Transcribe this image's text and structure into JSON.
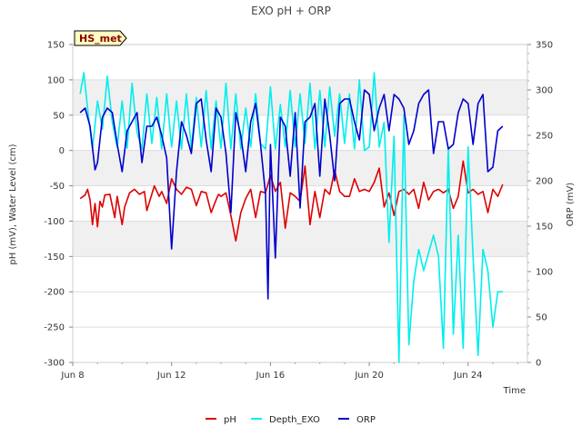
{
  "chart_data": {
    "type": "line",
    "title": "EXO pH + ORP",
    "badge": "HS_met",
    "xlabel": "Time",
    "ylabel_left": "pH (mV), Water Level (cm)",
    "ylabel_right": "ORP (mV)",
    "ylim_left": [
      -300,
      150
    ],
    "ylim_right": [
      0,
      350
    ],
    "xlim": [
      0,
      18.4
    ],
    "x_unit": "days since Jun 8",
    "x_ticks": [
      {
        "x": 0,
        "label": "Jun 8"
      },
      {
        "x": 4,
        "label": "Jun 12"
      },
      {
        "x": 8,
        "label": "Jun 16"
      },
      {
        "x": 12,
        "label": "Jun 20"
      },
      {
        "x": 16,
        "label": "Jun 24"
      }
    ],
    "y_ticks_left": [
      -300,
      -250,
      -200,
      -150,
      -100,
      -50,
      0,
      50,
      100,
      150
    ],
    "y_ticks_right": [
      0,
      50,
      100,
      150,
      200,
      250,
      300,
      350
    ],
    "bands_left": [
      [
        -150,
        -100
      ],
      [
        -50,
        0
      ],
      [
        50,
        100
      ]
    ],
    "grid": true,
    "legend_position": "bottom",
    "series": [
      {
        "name": "pH",
        "axis": "left",
        "color": "#dd0000",
        "x": [
          0.3,
          0.5,
          0.6,
          0.7,
          0.8,
          0.9,
          1.0,
          1.1,
          1.2,
          1.3,
          1.5,
          1.7,
          1.8,
          2.0,
          2.1,
          2.3,
          2.5,
          2.7,
          2.9,
          3.0,
          3.3,
          3.5,
          3.6,
          3.8,
          4.0,
          4.2,
          4.4,
          4.6,
          4.8,
          5.0,
          5.2,
          5.4,
          5.6,
          5.8,
          5.9,
          6.0,
          6.2,
          6.4,
          6.6,
          6.8,
          7.0,
          7.2,
          7.4,
          7.6,
          7.8,
          8.0,
          8.2,
          8.4,
          8.6,
          8.8,
          9.0,
          9.2,
          9.4,
          9.6,
          9.8,
          10.0,
          10.2,
          10.4,
          10.6,
          10.8,
          11.0,
          11.2,
          11.4,
          11.6,
          11.8,
          12.0,
          12.2,
          12.4,
          12.6,
          12.8,
          13.0,
          13.2,
          13.4,
          13.6,
          13.8,
          14.0,
          14.2,
          14.4,
          14.6,
          14.8,
          15.0,
          15.2,
          15.4,
          15.6,
          15.8,
          16.0,
          16.2,
          16.4,
          16.6,
          16.8,
          17.0,
          17.2,
          17.4
        ],
        "values": [
          -68,
          -63,
          -55,
          -70,
          -105,
          -75,
          -108,
          -72,
          -80,
          -63,
          -62,
          -95,
          -65,
          -105,
          -80,
          -60,
          -55,
          -62,
          -58,
          -85,
          -50,
          -65,
          -58,
          -75,
          -40,
          -55,
          -62,
          -52,
          -55,
          -78,
          -58,
          -60,
          -88,
          -70,
          -62,
          -65,
          -60,
          -92,
          -128,
          -88,
          -68,
          -55,
          -95,
          -58,
          -60,
          -35,
          -58,
          -45,
          -110,
          -60,
          -65,
          -72,
          -22,
          -105,
          -58,
          -95,
          -55,
          -62,
          -28,
          -58,
          -65,
          -65,
          -40,
          -58,
          -55,
          -58,
          -45,
          -25,
          -80,
          -60,
          -92,
          -58,
          -55,
          -62,
          -55,
          -82,
          -45,
          -70,
          -58,
          -55,
          -60,
          -55,
          -82,
          -65,
          -15,
          -60,
          -55,
          -62,
          -58,
          -88,
          -55,
          -65,
          -48
        ]
      },
      {
        "name": "Depth_EXO",
        "axis": "left",
        "color": "#00eeee",
        "x": [
          0.3,
          0.45,
          0.6,
          0.8,
          1.0,
          1.2,
          1.4,
          1.6,
          1.8,
          2.0,
          2.2,
          2.4,
          2.6,
          2.8,
          3.0,
          3.2,
          3.4,
          3.6,
          3.8,
          4.0,
          4.2,
          4.4,
          4.6,
          4.8,
          5.0,
          5.2,
          5.4,
          5.6,
          5.8,
          6.0,
          6.2,
          6.4,
          6.6,
          6.8,
          7.0,
          7.2,
          7.4,
          7.6,
          7.8,
          8.0,
          8.2,
          8.4,
          8.6,
          8.8,
          9.0,
          9.2,
          9.4,
          9.6,
          9.8,
          10.0,
          10.2,
          10.4,
          10.6,
          10.8,
          11.0,
          11.2,
          11.4,
          11.6,
          11.8,
          12.0,
          12.2,
          12.4,
          12.6,
          12.8,
          13.0,
          13.2,
          13.4,
          13.6,
          13.8,
          14.0,
          14.2,
          14.4,
          14.6,
          14.8,
          15.0,
          15.2,
          15.4,
          15.6,
          15.8,
          16.0,
          16.2,
          16.4,
          16.6,
          16.8,
          17.0,
          17.2,
          17.4
        ],
        "values": [
          80,
          110,
          60,
          2,
          70,
          30,
          105,
          40,
          5,
          70,
          3,
          95,
          25,
          2,
          80,
          10,
          75,
          2,
          80,
          5,
          70,
          2,
          80,
          3,
          75,
          5,
          85,
          2,
          70,
          3,
          95,
          2,
          80,
          2,
          60,
          5,
          80,
          10,
          2,
          90,
          2,
          65,
          5,
          85,
          5,
          80,
          10,
          95,
          2,
          85,
          5,
          90,
          20,
          80,
          10,
          80,
          2,
          100,
          0,
          5,
          110,
          5,
          40,
          -130,
          20,
          -300,
          50,
          -275,
          -185,
          -140,
          -170,
          -145,
          -120,
          -150,
          -280,
          5,
          -260,
          -120,
          -280,
          5,
          -150,
          -290,
          -140,
          -170,
          -250,
          -200,
          -200
        ]
      },
      {
        "name": "ORP",
        "axis": "right",
        "color": "#0000cc",
        "x": [
          0.3,
          0.5,
          0.7,
          0.9,
          1.0,
          1.2,
          1.4,
          1.6,
          1.8,
          2.0,
          2.2,
          2.4,
          2.6,
          2.8,
          3.0,
          3.2,
          3.4,
          3.6,
          3.8,
          4.0,
          4.2,
          4.4,
          4.6,
          4.8,
          5.0,
          5.2,
          5.4,
          5.6,
          5.8,
          6.0,
          6.2,
          6.4,
          6.6,
          6.8,
          7.0,
          7.2,
          7.4,
          7.6,
          7.8,
          7.9,
          8.0,
          8.2,
          8.4,
          8.6,
          8.8,
          9.0,
          9.2,
          9.4,
          9.6,
          9.8,
          10.0,
          10.2,
          10.4,
          10.6,
          10.8,
          11.0,
          11.2,
          11.4,
          11.6,
          11.8,
          12.0,
          12.2,
          12.4,
          12.6,
          12.8,
          13.0,
          13.2,
          13.4,
          13.6,
          13.8,
          14.0,
          14.2,
          14.4,
          14.6,
          14.8,
          15.0,
          15.2,
          15.4,
          15.6,
          15.8,
          16.0,
          16.2,
          16.4,
          16.6,
          16.8,
          17.0,
          17.2,
          17.4
        ],
        "values": [
          275,
          280,
          260,
          212,
          220,
          270,
          280,
          275,
          240,
          210,
          255,
          265,
          275,
          220,
          260,
          260,
          270,
          250,
          225,
          125,
          210,
          265,
          250,
          230,
          285,
          290,
          245,
          210,
          280,
          270,
          230,
          165,
          275,
          250,
          210,
          265,
          285,
          240,
          185,
          70,
          240,
          115,
          270,
          260,
          205,
          275,
          170,
          265,
          270,
          285,
          205,
          290,
          250,
          200,
          285,
          290,
          290,
          265,
          245,
          300,
          295,
          255,
          280,
          295,
          255,
          295,
          290,
          280,
          240,
          255,
          285,
          295,
          300,
          230,
          265,
          265,
          235,
          240,
          275,
          290,
          285,
          240,
          285,
          295,
          210,
          215,
          255,
          260
        ]
      }
    ]
  }
}
